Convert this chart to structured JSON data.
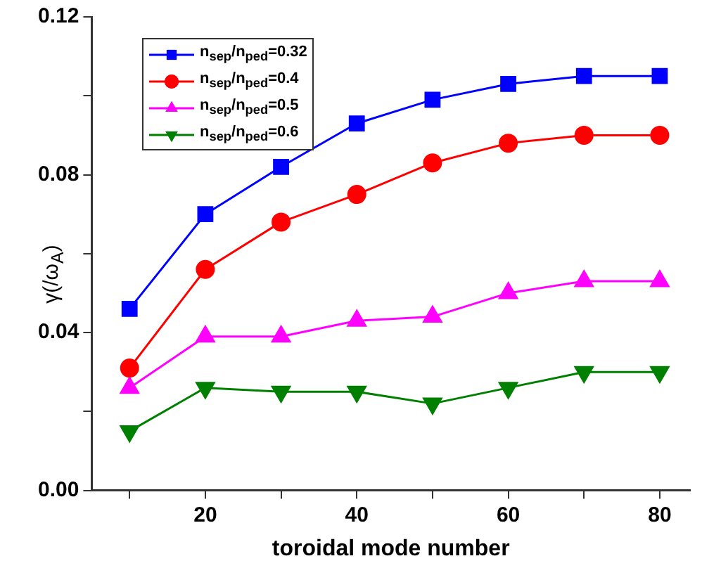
{
  "chart_data": {
    "type": "line",
    "xlabel": "toroidal mode number",
    "ylabel": "γ(/ω$_{A}$)",
    "x": [
      10,
      20,
      30,
      40,
      50,
      60,
      70,
      80
    ],
    "xlim": [
      5,
      84
    ],
    "xticks": [
      {
        "value": 10,
        "label": null
      },
      20,
      {
        "value": 30,
        "label": null
      },
      40,
      {
        "value": 50,
        "label": null
      },
      60,
      {
        "value": 70,
        "label": null
      },
      80
    ],
    "ylim": [
      0,
      0.12
    ],
    "yticks": [
      "0.00",
      {
        "value": 0.02,
        "label": null
      },
      0.04,
      {
        "value": 0.06,
        "label": null
      },
      0.08,
      {
        "value": 0.1,
        "label": null
      },
      0.12
    ],
    "legend": "top left",
    "grid": false,
    "series": [
      {
        "name": "n$_{sep}$/n$_{ped}$=0.32",
        "color": "#0000ff",
        "marker": "square",
        "values": [
          0.046,
          0.07,
          0.082,
          0.093,
          0.099,
          0.103,
          0.105,
          0.105
        ]
      },
      {
        "name": "n$_{sep}$/n$_{ped}$=0.4",
        "color": "#ff0000",
        "marker": "circle",
        "values": [
          0.031,
          0.056,
          0.068,
          0.075,
          0.083,
          0.088,
          0.09,
          0.09
        ]
      },
      {
        "name": "n$_{sep}$/n$_{ped}$=0.5",
        "color": "#ff00ff",
        "marker": "triangle",
        "values": [
          0.026,
          0.039,
          0.039,
          0.043,
          0.044,
          0.05,
          0.053,
          0.053
        ]
      },
      {
        "name": "n$_{sep}$/n$_{ped}$=0.6",
        "color": "#008000",
        "marker": "triangle-down",
        "values": [
          0.015,
          0.026,
          0.025,
          0.025,
          0.022,
          0.026,
          0.03,
          0.03
        ]
      }
    ]
  }
}
